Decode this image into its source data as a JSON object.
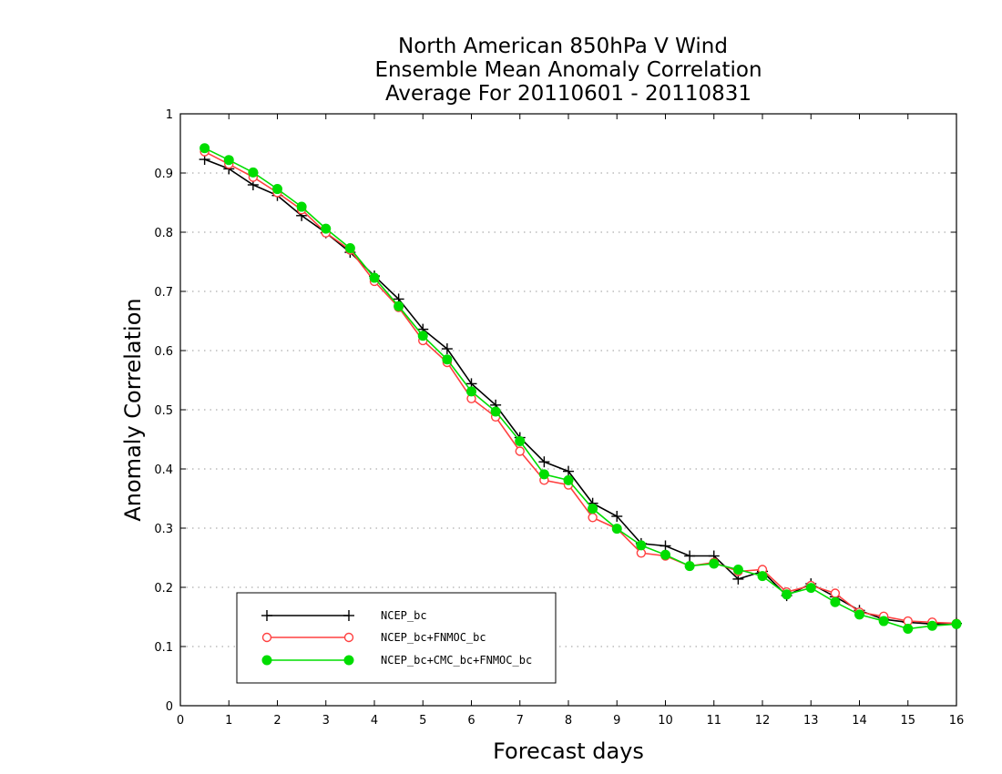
{
  "chart_data": {
    "type": "line",
    "title": [
      "North American 850hPa V Wind",
      "Ensemble Mean Anomaly Correlation",
      "Average For 20110601 - 20110831"
    ],
    "xlabel": "Forecast days",
    "ylabel": "Anomaly Correlation",
    "xlim": [
      0,
      16
    ],
    "ylim": [
      0,
      1
    ],
    "xticks": [
      "0",
      "1",
      "2",
      "3",
      "4",
      "5",
      "6",
      "7",
      "8",
      "9",
      "10",
      "11",
      "12",
      "13",
      "14",
      "15",
      "16"
    ],
    "yticks": [
      "0",
      "0.1",
      "0.2",
      "0.3",
      "0.4",
      "0.5",
      "0.6",
      "0.7",
      "0.8",
      "0.9",
      "1"
    ],
    "grid": "horizontal dotted",
    "legend_position": "bottom-left",
    "x": [
      0.5,
      1,
      1.5,
      2,
      2.5,
      3,
      3.5,
      4,
      4.5,
      5,
      5.5,
      6,
      6.5,
      7,
      7.5,
      8,
      8.5,
      9,
      9.5,
      10,
      10.5,
      11,
      11.5,
      12,
      12.5,
      13,
      13.5,
      14,
      14.5,
      15,
      15.5,
      16
    ],
    "series": [
      {
        "name": "NCEP_bc",
        "color": "#000000",
        "marker": "plus",
        "values": [
          0.923,
          0.907,
          0.88,
          0.862,
          0.828,
          0.799,
          0.766,
          0.726,
          0.687,
          0.636,
          0.603,
          0.544,
          0.508,
          0.453,
          0.412,
          0.396,
          0.342,
          0.32,
          0.274,
          0.27,
          0.253,
          0.253,
          0.214,
          0.227,
          0.186,
          0.206,
          0.184,
          0.161,
          0.146,
          0.141,
          0.138,
          0.139
        ]
      },
      {
        "name": "NCEP_bc+FNMOC_bc",
        "color": "#ff4040",
        "marker": "open-circle",
        "values": [
          0.936,
          0.915,
          0.893,
          0.867,
          0.838,
          0.799,
          0.77,
          0.717,
          0.673,
          0.617,
          0.58,
          0.519,
          0.488,
          0.43,
          0.381,
          0.373,
          0.318,
          0.299,
          0.258,
          0.253,
          0.236,
          0.242,
          0.227,
          0.23,
          0.192,
          0.203,
          0.19,
          0.158,
          0.151,
          0.143,
          0.141,
          0.139
        ]
      },
      {
        "name": "NCEP_bc+CMC_bc+FNMOC_bc",
        "color": "#00dd00",
        "marker": "filled-circle",
        "values": [
          0.942,
          0.922,
          0.901,
          0.873,
          0.843,
          0.806,
          0.773,
          0.723,
          0.675,
          0.625,
          0.585,
          0.531,
          0.497,
          0.447,
          0.391,
          0.381,
          0.333,
          0.299,
          0.271,
          0.255,
          0.236,
          0.24,
          0.23,
          0.219,
          0.188,
          0.199,
          0.175,
          0.154,
          0.143,
          0.13,
          0.135,
          0.138
        ]
      }
    ]
  }
}
